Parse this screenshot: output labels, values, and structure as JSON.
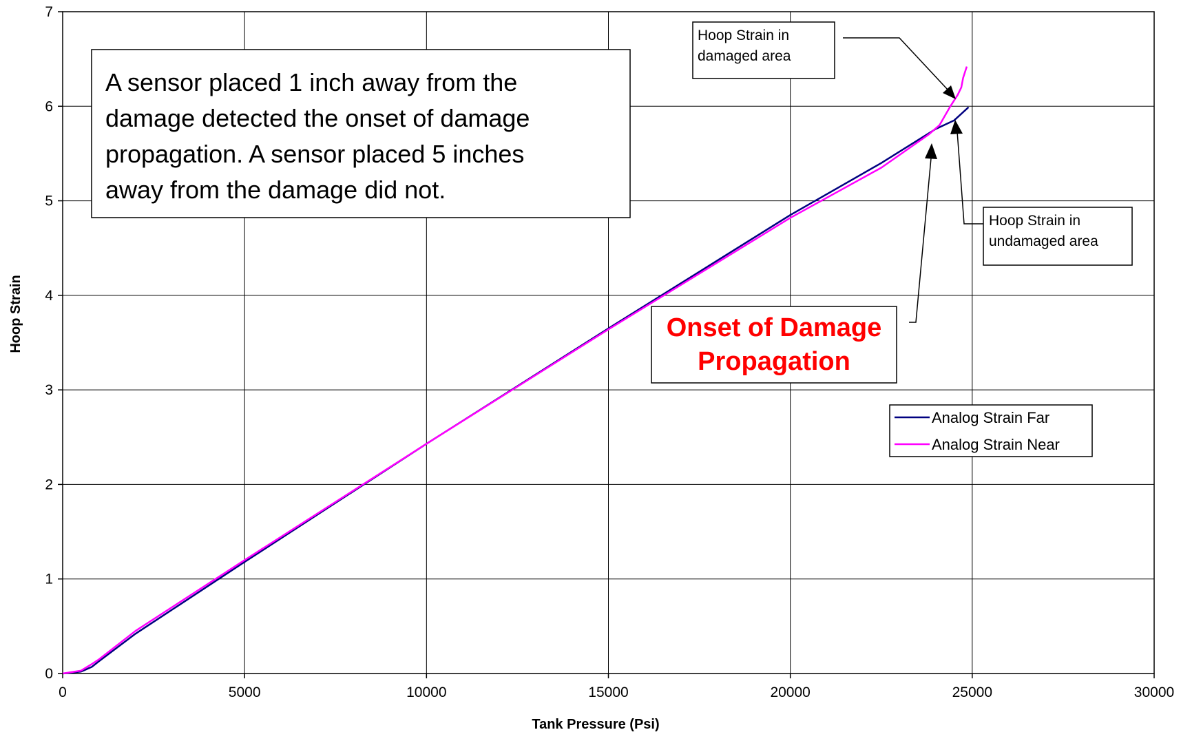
{
  "chart_data": {
    "type": "line",
    "title": "",
    "xlabel": "Tank Pressure (Psi)",
    "ylabel": "Hoop Strain",
    "xlim": [
      0,
      30000
    ],
    "ylim": [
      0,
      7
    ],
    "x_ticks": [
      0,
      5000,
      10000,
      15000,
      20000,
      25000,
      30000
    ],
    "y_ticks": [
      0,
      1,
      2,
      3,
      4,
      5,
      6,
      7
    ],
    "x_tick_labels": [
      "0",
      "5000",
      "10000",
      "15000",
      "20000",
      "25000",
      "30000"
    ],
    "y_tick_labels": [
      "0",
      "1",
      "2",
      "3",
      "4",
      "5",
      "6",
      "7"
    ],
    "grid": true,
    "legend_position": "right-middle",
    "series": [
      {
        "name": "Analog Strain Far",
        "color": "#000080",
        "points": [
          [
            0,
            0
          ],
          [
            500,
            0.02
          ],
          [
            800,
            0.07
          ],
          [
            1000,
            0.13
          ],
          [
            2000,
            0.42
          ],
          [
            5000,
            1.18
          ],
          [
            10000,
            2.43
          ],
          [
            15000,
            3.65
          ],
          [
            20000,
            4.85
          ],
          [
            22500,
            5.4
          ],
          [
            24000,
            5.76
          ],
          [
            24500,
            5.85
          ],
          [
            24900,
            5.99
          ]
        ]
      },
      {
        "name": "Analog Strain Near",
        "color": "#ff00ff",
        "points": [
          [
            0,
            0
          ],
          [
            500,
            0.03
          ],
          [
            800,
            0.1
          ],
          [
            1000,
            0.15
          ],
          [
            2000,
            0.45
          ],
          [
            5000,
            1.2
          ],
          [
            10000,
            2.43
          ],
          [
            15000,
            3.64
          ],
          [
            20000,
            4.82
          ],
          [
            22500,
            5.35
          ],
          [
            23800,
            5.7
          ],
          [
            24100,
            5.8
          ],
          [
            24400,
            6.0
          ],
          [
            24600,
            6.12
          ],
          [
            24700,
            6.2
          ],
          [
            24750,
            6.3
          ],
          [
            24850,
            6.42
          ]
        ]
      }
    ],
    "annotations": [
      {
        "text": "A sensor placed 1 inch away from the damage detected the onset of damage propagation.  A sensor placed 5 inches away from the damage did not.",
        "lines": [
          "A sensor placed 1 inch away from the",
          "damage detected the onset of damage",
          "propagation.  A sensor placed 5 inches",
          "away from the damage did not."
        ]
      },
      {
        "text": "Hoop Strain in damaged area",
        "lines": [
          "Hoop Strain in",
          "damaged area"
        ]
      },
      {
        "text": "Hoop Strain in undamaged area",
        "lines": [
          "Hoop Strain in",
          "undamaged area"
        ]
      },
      {
        "text": "Onset of Damage Propagation",
        "lines": [
          "Onset of Damage",
          "Propagation"
        ],
        "color": "#ff0000"
      }
    ]
  }
}
